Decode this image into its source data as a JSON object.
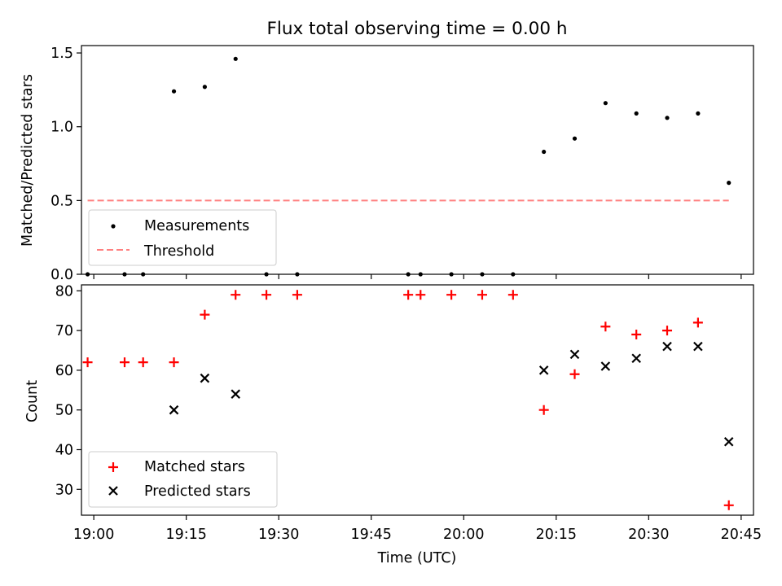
{
  "chart_data": [
    {
      "type": "scatter",
      "title": "Flux total observing time = 0.00 h",
      "xlabel": "",
      "ylabel": "Matched/Predicted stars",
      "xlim": [
        "18:58",
        "20:47"
      ],
      "ylim": [
        0,
        1.55
      ],
      "x_ticks": [
        "19:00",
        "19:15",
        "19:30",
        "19:45",
        "20:00",
        "20:15",
        "20:30",
        "20:45"
      ],
      "y_ticks": [
        {
          "value": 0.0,
          "label": "0.0"
        },
        {
          "value": 0.5,
          "label": "0.5"
        },
        {
          "value": 1.0,
          "label": "1.0"
        },
        {
          "value": 1.5,
          "label": "1.5"
        }
      ],
      "legend": {
        "placement": "lower-left",
        "entries": [
          "Measurements",
          "Threshold"
        ]
      },
      "series": [
        {
          "name": "Measurements",
          "marker": "dot",
          "color": "#000000",
          "points": [
            {
              "x": "18:59",
              "y": 0.0
            },
            {
              "x": "19:05",
              "y": 0.0
            },
            {
              "x": "19:08",
              "y": 0.0
            },
            {
              "x": "19:13",
              "y": 1.24
            },
            {
              "x": "19:18",
              "y": 1.27
            },
            {
              "x": "19:23",
              "y": 1.46
            },
            {
              "x": "19:28",
              "y": 0.0
            },
            {
              "x": "19:33",
              "y": 0.0
            },
            {
              "x": "19:51",
              "y": 0.0
            },
            {
              "x": "19:53",
              "y": 0.0
            },
            {
              "x": "19:58",
              "y": 0.0
            },
            {
              "x": "20:03",
              "y": 0.0
            },
            {
              "x": "20:08",
              "y": 0.0
            },
            {
              "x": "20:13",
              "y": 0.83
            },
            {
              "x": "20:18",
              "y": 0.92
            },
            {
              "x": "20:23",
              "y": 1.16
            },
            {
              "x": "20:28",
              "y": 1.09
            },
            {
              "x": "20:33",
              "y": 1.06
            },
            {
              "x": "20:38",
              "y": 1.09
            },
            {
              "x": "20:43",
              "y": 0.62
            }
          ]
        },
        {
          "name": "Threshold",
          "type": "line",
          "style": "dashed",
          "color": "#ff8080",
          "points": [
            {
              "x": "18:59",
              "y": 0.5
            },
            {
              "x": "20:43",
              "y": 0.5
            }
          ]
        }
      ]
    },
    {
      "type": "scatter",
      "title": "",
      "xlabel": "Time (UTC)",
      "ylabel": "Count",
      "xlim": [
        "18:58",
        "20:47"
      ],
      "ylim": [
        23.5,
        81.5
      ],
      "x_ticks": [
        "19:00",
        "19:15",
        "19:30",
        "19:45",
        "20:00",
        "20:15",
        "20:30",
        "20:45"
      ],
      "y_ticks": [
        {
          "value": 30,
          "label": "30"
        },
        {
          "value": 40,
          "label": "40"
        },
        {
          "value": 50,
          "label": "50"
        },
        {
          "value": 60,
          "label": "60"
        },
        {
          "value": 70,
          "label": "70"
        },
        {
          "value": 80,
          "label": "80"
        }
      ],
      "legend": {
        "placement": "lower-left",
        "entries": [
          "Matched stars",
          "Predicted stars"
        ]
      },
      "series": [
        {
          "name": "Matched stars",
          "marker": "plus",
          "color": "#ff0000",
          "points": [
            {
              "x": "18:59",
              "y": 62
            },
            {
              "x": "19:05",
              "y": 62
            },
            {
              "x": "19:08",
              "y": 62
            },
            {
              "x": "19:13",
              "y": 62
            },
            {
              "x": "19:18",
              "y": 74
            },
            {
              "x": "19:23",
              "y": 79
            },
            {
              "x": "19:28",
              "y": 79
            },
            {
              "x": "19:33",
              "y": 79
            },
            {
              "x": "19:51",
              "y": 79
            },
            {
              "x": "19:53",
              "y": 79
            },
            {
              "x": "19:58",
              "y": 79
            },
            {
              "x": "20:03",
              "y": 79
            },
            {
              "x": "20:08",
              "y": 79
            },
            {
              "x": "20:13",
              "y": 50
            },
            {
              "x": "20:18",
              "y": 59
            },
            {
              "x": "20:23",
              "y": 71
            },
            {
              "x": "20:28",
              "y": 69
            },
            {
              "x": "20:33",
              "y": 70
            },
            {
              "x": "20:38",
              "y": 72
            },
            {
              "x": "20:43",
              "y": 26
            }
          ]
        },
        {
          "name": "Predicted stars",
          "marker": "x",
          "color": "#000000",
          "points": [
            {
              "x": "19:13",
              "y": 50
            },
            {
              "x": "19:18",
              "y": 58
            },
            {
              "x": "19:23",
              "y": 54
            },
            {
              "x": "20:13",
              "y": 60
            },
            {
              "x": "20:18",
              "y": 64
            },
            {
              "x": "20:23",
              "y": 61
            },
            {
              "x": "20:28",
              "y": 63
            },
            {
              "x": "20:33",
              "y": 66
            },
            {
              "x": "20:38",
              "y": 66
            },
            {
              "x": "20:43",
              "y": 42
            }
          ]
        }
      ]
    }
  ]
}
